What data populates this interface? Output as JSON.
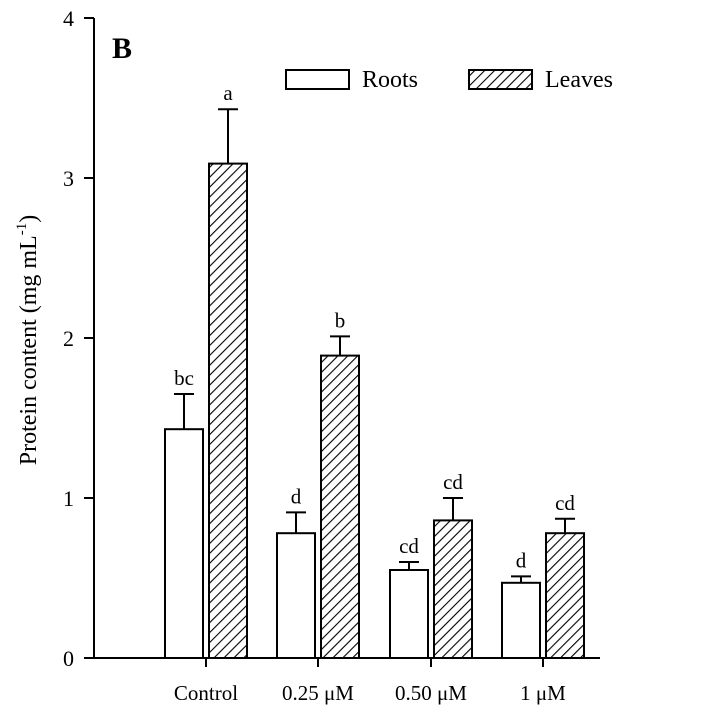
{
  "chart_data": {
    "type": "bar",
    "panel_label": "B",
    "ylabel": "Protein content (mg mL",
    "ylabel_sup": "-1",
    "ylabel_close": ")",
    "ylim": [
      0,
      4
    ],
    "yticks": [
      "0",
      "1",
      "2",
      "3",
      "4"
    ],
    "categories": [
      "Control",
      "0.25 μM",
      "0.50 μM",
      "1 μM"
    ],
    "legend_position": "top-right",
    "series": [
      {
        "name": "Roots",
        "fill": "white",
        "values": [
          1.43,
          0.78,
          0.55,
          0.47
        ],
        "errors": [
          0.22,
          0.13,
          0.05,
          0.04
        ],
        "letters": [
          "bc",
          "d",
          "cd",
          "d"
        ]
      },
      {
        "name": "Leaves",
        "fill": "hatched",
        "values": [
          3.09,
          1.89,
          0.86,
          0.78
        ],
        "errors": [
          0.34,
          0.12,
          0.14,
          0.09
        ],
        "letters": [
          "a",
          "b",
          "cd",
          "cd"
        ]
      }
    ],
    "colors": {
      "stroke": "#000000",
      "background": "#ffffff"
    }
  }
}
